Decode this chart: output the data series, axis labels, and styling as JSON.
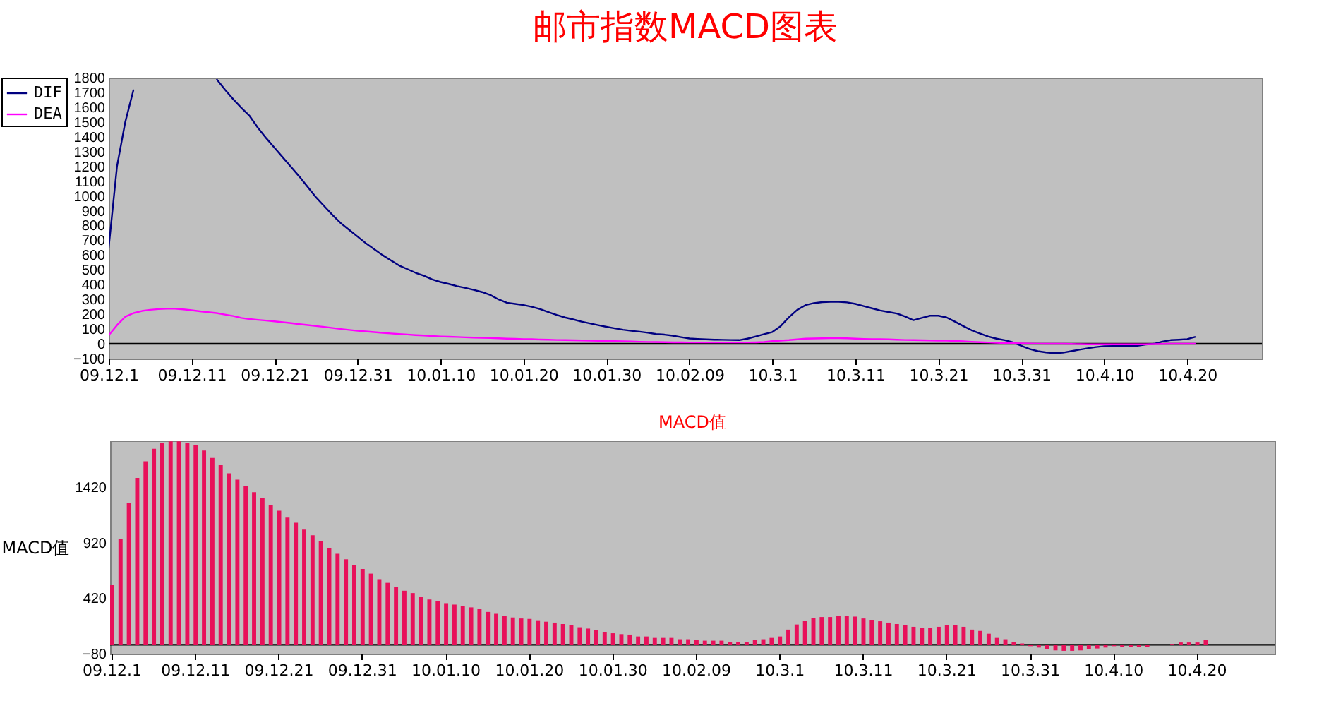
{
  "chart_data": [
    {
      "type": "line",
      "title": "邮市指数MACD图表",
      "categories": [
        "09.12.1",
        null,
        null,
        null,
        null,
        null,
        null,
        null,
        null,
        null,
        "09.12.11",
        null,
        null,
        null,
        null,
        null,
        null,
        null,
        null,
        null,
        "09.12.21",
        null,
        null,
        null,
        null,
        null,
        null,
        null,
        null,
        null,
        "09.12.31",
        null,
        null,
        null,
        null,
        null,
        null,
        null,
        null,
        null,
        "10.01.10",
        null,
        null,
        null,
        null,
        null,
        null,
        null,
        null,
        null,
        "10.01.20",
        null,
        null,
        null,
        null,
        null,
        null,
        null,
        null,
        null,
        "10.01.30",
        null,
        null,
        null,
        null,
        null,
        null,
        null,
        null,
        null,
        "10.02.09",
        null,
        null,
        null,
        null,
        null,
        null,
        null,
        null,
        null,
        "10.3.1",
        null,
        null,
        null,
        null,
        null,
        null,
        null,
        null,
        null,
        "10.3.11",
        null,
        null,
        null,
        null,
        null,
        null,
        null,
        null,
        null,
        "10.3.21",
        null,
        null,
        null,
        null,
        null,
        null,
        null,
        null,
        null,
        "10.3.31",
        null,
        null,
        null,
        null,
        null,
        null,
        null,
        null,
        null,
        "10.4.10",
        null,
        null,
        null,
        null,
        null,
        null,
        null,
        null,
        null,
        "10.4.20",
        null,
        null,
        null,
        null,
        null,
        null,
        null,
        null,
        null
      ],
      "series": [
        {
          "name": "DIF",
          "color": "#000080",
          "values": [
            650,
            1200,
            1500,
            1720,
            null,
            null,
            null,
            null,
            null,
            null,
            null,
            null,
            null,
            1790,
            1720,
            1655,
            1595,
            1540,
            1460,
            1390,
            1325,
            1260,
            1195,
            1130,
            1060,
            990,
            930,
            870,
            815,
            770,
            725,
            680,
            640,
            600,
            565,
            530,
            505,
            480,
            460,
            435,
            418,
            405,
            390,
            378,
            365,
            350,
            330,
            300,
            278,
            270,
            262,
            250,
            235,
            215,
            195,
            178,
            165,
            150,
            138,
            126,
            115,
            105,
            95,
            88,
            82,
            75,
            66,
            62,
            55,
            45,
            36,
            33,
            30,
            28,
            27,
            26,
            25,
            35,
            50,
            65,
            80,
            120,
            180,
            230,
            262,
            275,
            282,
            284,
            284,
            280,
            270,
            255,
            240,
            225,
            215,
            205,
            185,
            160,
            175,
            190,
            190,
            178,
            150,
            120,
            92,
            70,
            50,
            35,
            25,
            10,
            -13,
            -35,
            -50,
            -58,
            -63,
            -60,
            -50,
            -40,
            -30,
            -22,
            -16,
            -15,
            -14,
            -14,
            -13,
            -5,
            0,
            15,
            25,
            28,
            32,
            47,
            null,
            null,
            null,
            null,
            null,
            null,
            null,
            null
          ]
        },
        {
          "name": "DEA",
          "color": "#ff00ff",
          "values": [
            57,
            126,
            183,
            208,
            222,
            230,
            235,
            237,
            237,
            233,
            227,
            220,
            214,
            208,
            198,
            188,
            175,
            167,
            162,
            157,
            152,
            146,
            140,
            133,
            127,
            120,
            114,
            107,
            100,
            94,
            88,
            84,
            79,
            74,
            70,
            66,
            63,
            59,
            56,
            53,
            50,
            48,
            46,
            44,
            42,
            41,
            39,
            37,
            35,
            34,
            32,
            31,
            29,
            28,
            26,
            25,
            24,
            23,
            21,
            20,
            19,
            18,
            17,
            16,
            14,
            13,
            12,
            11,
            10,
            10,
            9,
            9,
            9,
            9,
            9,
            9,
            9,
            9,
            10,
            12,
            18,
            22,
            25,
            30,
            35,
            36,
            37,
            38,
            38,
            37,
            35,
            33,
            32,
            31,
            30,
            28,
            26,
            25,
            24,
            23,
            22,
            21,
            19,
            17,
            14,
            11,
            9,
            7,
            5,
            4,
            3,
            2,
            1,
            0,
            0,
            0,
            -1,
            -2,
            -3,
            -3,
            -3,
            -3,
            -3,
            -3,
            -3,
            -3,
            -2,
            -1,
            0,
            0,
            0,
            0,
            null,
            null,
            null,
            null,
            null,
            null,
            null,
            null
          ]
        }
      ],
      "ylim": [
        -100,
        1800
      ],
      "yticks": [
        -100,
        0,
        100,
        200,
        300,
        400,
        500,
        600,
        700,
        800,
        900,
        1000,
        1100,
        1200,
        1300,
        1400,
        1500,
        1600,
        1700,
        1800
      ],
      "ref_lines": [
        {
          "axis": "y",
          "value": 0,
          "color": "#000000"
        }
      ],
      "legend": "left"
    },
    {
      "type": "bar",
      "title": "MACD值",
      "ylabel": "MACD值",
      "categories": [
        "09.12.1",
        null,
        null,
        null,
        null,
        null,
        null,
        null,
        null,
        null,
        "09.12.11",
        null,
        null,
        null,
        null,
        null,
        null,
        null,
        null,
        null,
        "09.12.21",
        null,
        null,
        null,
        null,
        null,
        null,
        null,
        null,
        null,
        "09.12.31",
        null,
        null,
        null,
        null,
        null,
        null,
        null,
        null,
        null,
        "10.01.10",
        null,
        null,
        null,
        null,
        null,
        null,
        null,
        null,
        null,
        "10.01.20",
        null,
        null,
        null,
        null,
        null,
        null,
        null,
        null,
        null,
        "10.01.30",
        null,
        null,
        null,
        null,
        null,
        null,
        null,
        null,
        null,
        "10.02.09",
        null,
        null,
        null,
        null,
        null,
        null,
        null,
        null,
        null,
        "10.3.1",
        null,
        null,
        null,
        null,
        null,
        null,
        null,
        null,
        null,
        "10.3.11",
        null,
        null,
        null,
        null,
        null,
        null,
        null,
        null,
        null,
        "10.3.21",
        null,
        null,
        null,
        null,
        null,
        null,
        null,
        null,
        null,
        "10.3.31",
        null,
        null,
        null,
        null,
        null,
        null,
        null,
        null,
        null,
        "10.4.10",
        null,
        null,
        null,
        null,
        null,
        null,
        null,
        null,
        null,
        "10.4.20",
        null,
        null,
        null,
        null,
        null,
        null,
        null,
        null,
        null
      ],
      "values": [
        537,
        954,
        1278,
        1503,
        1653,
        1765,
        1820,
        1832,
        1832,
        1820,
        1799,
        1749,
        1682,
        1624,
        1545,
        1487,
        1432,
        1374,
        1320,
        1258,
        1208,
        1145,
        1099,
        1037,
        987,
        933,
        874,
        820,
        770,
        720,
        683,
        641,
        591,
        558,
        520,
        487,
        466,
        433,
        408,
        396,
        375,
        362,
        350,
        337,
        321,
        296,
        279,
        262,
        246,
        237,
        233,
        221,
        208,
        200,
        187,
        175,
        158,
        146,
        133,
        117,
        104,
        96,
        92,
        75,
        75,
        62,
        62,
        62,
        50,
        50,
        46,
        37,
        37,
        37,
        25,
        25,
        25,
        42,
        50,
        62,
        75,
        137,
        183,
        217,
        242,
        250,
        250,
        262,
        262,
        254,
        237,
        225,
        212,
        200,
        187,
        175,
        162,
        150,
        150,
        162,
        175,
        175,
        162,
        137,
        125,
        100,
        62,
        50,
        25,
        12,
        -12,
        -25,
        -37,
        -50,
        -54,
        -54,
        -50,
        -42,
        -33,
        -25,
        -12,
        -17,
        -17,
        -17,
        -17,
        0,
        0,
        8,
        21,
        21,
        21,
        46,
        null,
        null,
        null,
        null,
        null,
        null,
        null,
        null
      ],
      "color": "#e8105a",
      "ylim": [
        -80,
        1840
      ],
      "yticks": [
        -80,
        420,
        920,
        1420
      ],
      "ref_lines": [
        {
          "axis": "y",
          "value": 0,
          "color": "#000000"
        }
      ]
    }
  ]
}
